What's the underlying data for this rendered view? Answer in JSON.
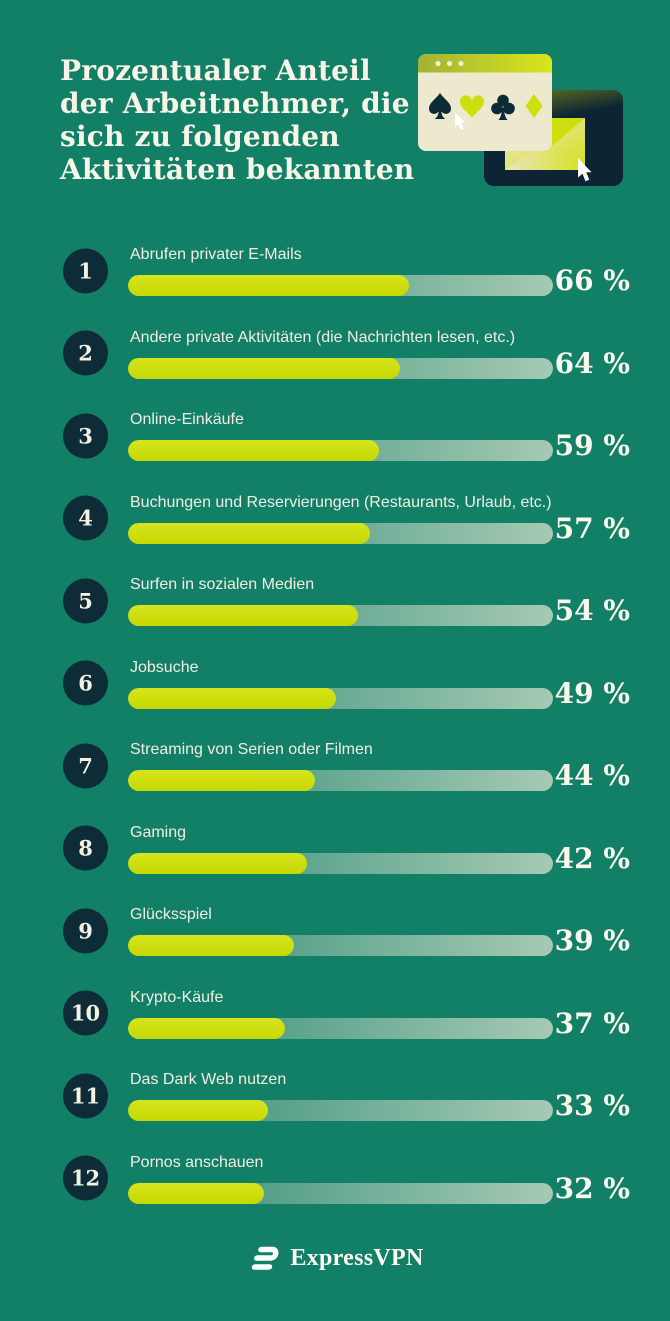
{
  "header": {
    "title": "Prozentualer Anteil\nder Arbeitnehmer, die\nsich zu folgenden\nAktivitäten bekannten"
  },
  "chart_data": {
    "type": "bar",
    "orientation": "horizontal",
    "title": "Prozentualer Anteil der Arbeitnehmer, die sich zu folgenden Aktivitäten bekannten",
    "unit": "%",
    "xlim": [
      0,
      100
    ],
    "grid": false,
    "legend": false,
    "ranks": [
      1,
      2,
      3,
      4,
      5,
      6,
      7,
      8,
      9,
      10,
      11,
      12
    ],
    "categories": [
      "Abrufen privater E-Mails",
      "Andere private Aktivitäten (die Nachrichten lesen, etc.)",
      "Online-Einkäufe",
      "Buchungen und Reservierungen (Restaurants, Urlaub, etc.)",
      "Surfen in sozialen Medien",
      "Jobsuche",
      "Streaming von Serien oder Filmen",
      "Gaming",
      "Glücksspiel",
      "Krypto-Käufe",
      "Das Dark Web nutzen",
      "Pornos anschauen"
    ],
    "values": [
      66,
      64,
      59,
      57,
      54,
      49,
      44,
      42,
      39,
      37,
      33,
      32
    ],
    "value_labels": [
      "66 %",
      "64 %",
      "59 %",
      "57 %",
      "54 %",
      "49 %",
      "44 %",
      "42 %",
      "39 %",
      "37 %",
      "33 %",
      "32 %"
    ]
  },
  "footer": {
    "brand": "ExpressVPN"
  },
  "icons": {
    "illustration": [
      "browser-window-icon",
      "card-suit-spade-icon",
      "card-suit-heart-icon",
      "card-suit-club-icon",
      "card-suit-diamond-icon",
      "cursor-arrow-icon",
      "envelope-icon",
      "dark-panel"
    ],
    "suit_glyphs": {
      "spade": "♠",
      "heart": "♥",
      "club": "♣",
      "diamond": "♦"
    },
    "footer": [
      "expressvpn-logo-icon"
    ]
  },
  "colors": {
    "background": "#128067",
    "bar_fill": "#cade0b",
    "track_start": "#2f8d74",
    "track_end": "#a6c9b4",
    "badge_bg": "#0d2c38",
    "text_cream": "#f8f4e7",
    "panel_navy": "#0c2433",
    "window_cream": "#ece9cf",
    "accent_lime": "#cde00e"
  }
}
